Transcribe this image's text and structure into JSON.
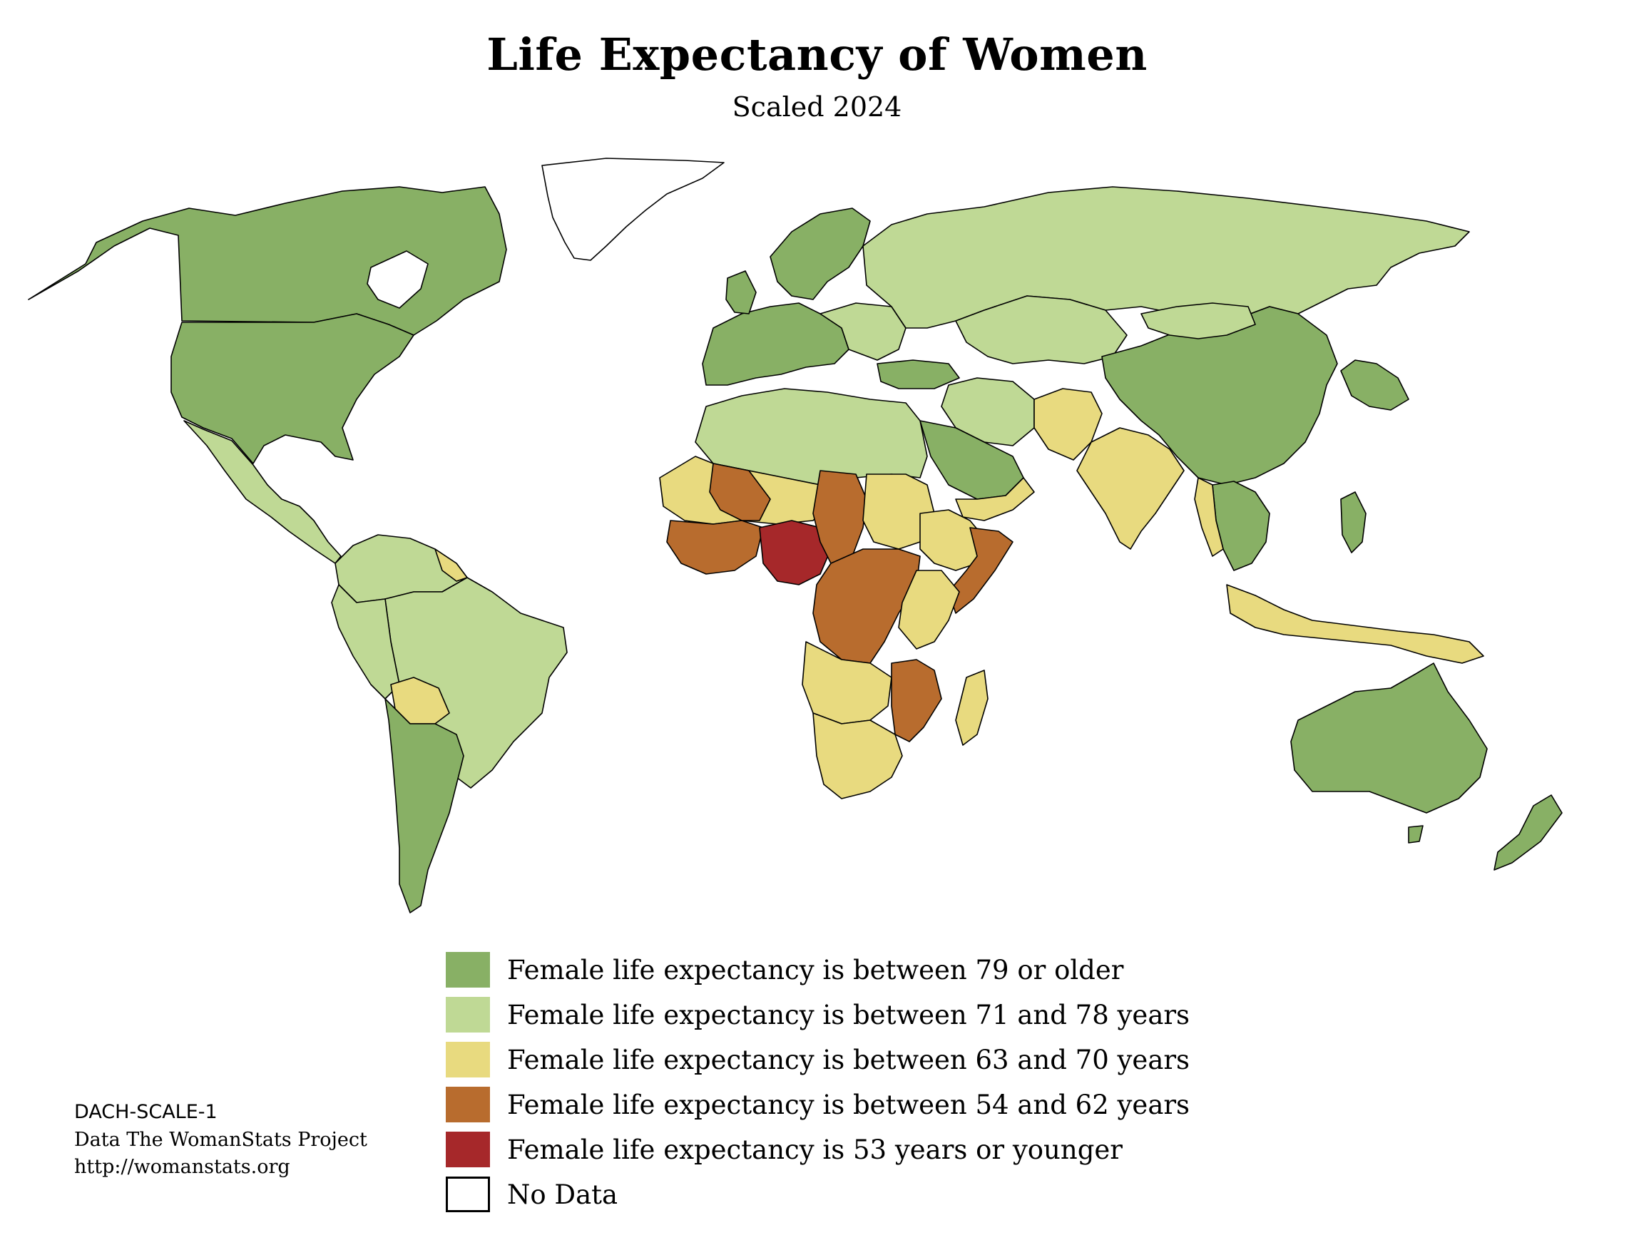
{
  "title": "Life Expectancy of Women",
  "subtitle": "Scaled 2024",
  "palette": {
    "band_79_plus": "#88b065",
    "band_71_78": "#bfd995",
    "band_63_70": "#e8da7f",
    "band_54_62": "#b86c2e",
    "band_53_under": "#a6282a",
    "no_data": "#ffffff",
    "border": "#000000"
  },
  "legend": [
    {
      "label": "Female life expectancy is between 79 or older",
      "color": "#88b065"
    },
    {
      "label": "Female life expectancy is between 71 and 78 years",
      "color": "#bfd995"
    },
    {
      "label": "Female life expectancy is between 63 and 70 years",
      "color": "#e8da7f"
    },
    {
      "label": "Female life expectancy is between 54 and 62 years",
      "color": "#b86c2e"
    },
    {
      "label": "Female life expectancy is 53 years or younger",
      "color": "#a6282a"
    },
    {
      "label": "No Data",
      "color": "#ffffff"
    }
  ],
  "credits": {
    "code": "DACH-SCALE-1",
    "source": "Data The WomanStats Project",
    "url": "http://womanstats.org"
  }
}
